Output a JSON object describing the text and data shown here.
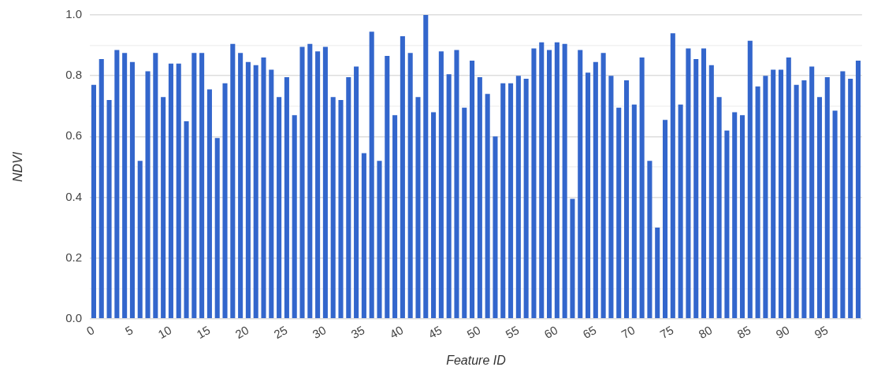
{
  "chart_data": {
    "type": "bar",
    "xlabel": "Feature ID",
    "ylabel": "NDVI",
    "categories": [
      "0",
      null,
      null,
      null,
      null,
      "5",
      null,
      null,
      null,
      null,
      "10",
      null,
      null,
      null,
      null,
      "15",
      null,
      null,
      null,
      null,
      "20",
      null,
      null,
      null,
      null,
      "25",
      null,
      null,
      null,
      null,
      "30",
      null,
      null,
      null,
      null,
      "35",
      null,
      null,
      null,
      null,
      "40",
      null,
      null,
      null,
      null,
      "45",
      null,
      null,
      null,
      null,
      "50",
      null,
      null,
      null,
      null,
      "55",
      null,
      null,
      null,
      null,
      "60",
      null,
      null,
      null,
      null,
      "65",
      null,
      null,
      null,
      null,
      "70",
      null,
      null,
      null,
      null,
      "75",
      null,
      null,
      null,
      null,
      "80",
      null,
      null,
      null,
      null,
      "85",
      null,
      null,
      null,
      null,
      "90",
      null,
      null,
      null,
      null,
      "95",
      null,
      null,
      null,
      null
    ],
    "series": [
      {
        "color": "#3366cc",
        "values": [
          0.77,
          0.855,
          0.72,
          0.885,
          0.875,
          0.845,
          0.52,
          0.815,
          0.875,
          0.73,
          0.84,
          0.84,
          0.65,
          0.875,
          0.875,
          0.755,
          0.595,
          0.775,
          0.905,
          0.875,
          0.845,
          0.835,
          0.86,
          0.82,
          0.73,
          0.795,
          0.67,
          0.895,
          0.905,
          0.88,
          0.895,
          0.73,
          0.72,
          0.795,
          0.83,
          0.545,
          0.945,
          0.52,
          0.865,
          0.67,
          0.93,
          0.875,
          0.73,
          1.0,
          0.68,
          0.88,
          0.805,
          0.885,
          0.695,
          0.85,
          0.795,
          0.74,
          0.6,
          0.775,
          0.775,
          0.8,
          0.79,
          0.89,
          0.91,
          0.885,
          0.91,
          0.905,
          0.395,
          0.885,
          0.81,
          0.845,
          0.875,
          0.8,
          0.695,
          0.785,
          0.705,
          0.86,
          0.52,
          0.3,
          0.655,
          0.94,
          0.705,
          0.89,
          0.855,
          0.89,
          0.835,
          0.73,
          0.62,
          0.68,
          0.67,
          0.915,
          0.765,
          0.8,
          0.82,
          0.82,
          0.86,
          0.77,
          0.785,
          0.83,
          0.73,
          0.795,
          0.685,
          0.815,
          0.79,
          0.85
        ]
      }
    ],
    "ylim": [
      0,
      1
    ],
    "yticks": [
      {
        "value": 0,
        "label": "0.0"
      },
      {
        "value": 0.1,
        "label": null
      },
      0.2,
      {
        "value": 0.3,
        "label": null
      },
      0.4,
      {
        "value": 0.5,
        "label": null
      },
      0.6,
      {
        "value": 0.7,
        "label": null
      },
      0.8,
      {
        "value": 0.9,
        "label": null
      },
      {
        "value": 1,
        "label": "1.0"
      }
    ],
    "grid": "y",
    "legend": false
  }
}
